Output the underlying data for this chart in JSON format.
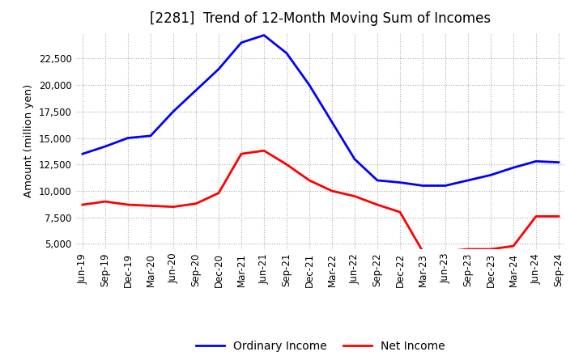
{
  "title": "[2281]  Trend of 12-Month Moving Sum of Incomes",
  "ylabel": "Amount (million yen)",
  "x_labels": [
    "Jun-19",
    "Sep-19",
    "Dec-19",
    "Mar-20",
    "Jun-20",
    "Sep-20",
    "Dec-20",
    "Mar-21",
    "Jun-21",
    "Sep-21",
    "Dec-21",
    "Mar-22",
    "Jun-22",
    "Sep-22",
    "Dec-22",
    "Mar-23",
    "Jun-23",
    "Sep-23",
    "Dec-23",
    "Mar-24",
    "Jun-24",
    "Sep-24"
  ],
  "ordinary_income": [
    13500,
    14200,
    15000,
    15200,
    17500,
    19500,
    21500,
    24000,
    24700,
    23000,
    20000,
    16500,
    13000,
    11000,
    10800,
    10500,
    10500,
    11000,
    11500,
    12200,
    12800,
    12700
  ],
  "net_income": [
    8700,
    9000,
    8700,
    8600,
    8500,
    8800,
    9800,
    13500,
    13800,
    12500,
    11000,
    10000,
    9500,
    8700,
    8000,
    4300,
    4300,
    4500,
    4500,
    4800,
    7600,
    7600
  ],
  "ordinary_color": "#0000ff",
  "net_color": "#ff0000",
  "ylim": [
    4500,
    25000
  ],
  "yticks": [
    5000,
    7500,
    10000,
    12500,
    15000,
    17500,
    20000,
    22500
  ],
  "background_color": "#ffffff",
  "grid_color": "#aaaaaa",
  "title_fontsize": 12,
  "axis_fontsize": 8.5,
  "legend_fontsize": 10
}
